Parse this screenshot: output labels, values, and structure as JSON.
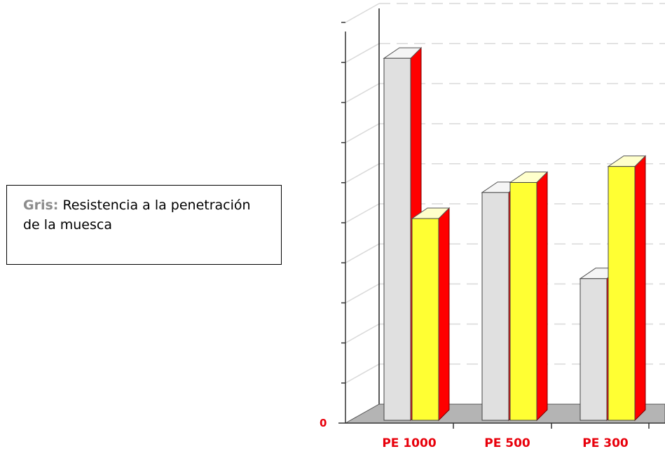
{
  "legend": {
    "key": "Gris:",
    "text": "Resistencia a la penetración de la muesca"
  },
  "chart_data": {
    "type": "bar",
    "categories": [
      "PE 1000",
      "PE 500",
      "PE 300"
    ],
    "series": [
      {
        "values": [
          9,
          5.65,
          3.5
        ]
      },
      {
        "values": [
          5,
          5.9,
          6.3
        ]
      }
    ],
    "ylim": [
      0,
      10
    ],
    "ytick_labels": [
      "0"
    ],
    "grid": true,
    "colors": {
      "gray_front": "#e0e0e0",
      "gray_top": "#f5f5f5",
      "yellow_front": "#ffff33",
      "yellow_top": "#ffffcc",
      "red_side": "#ff0000",
      "red_outline": "#7a0000",
      "floor": "#b4b4b4",
      "label": "#e8000b"
    }
  }
}
